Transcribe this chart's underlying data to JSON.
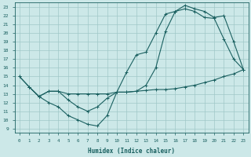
{
  "xlabel": "Humidex (Indice chaleur)",
  "xlim": [
    -0.5,
    23.5
  ],
  "ylim": [
    8.5,
    23.5
  ],
  "xticks": [
    0,
    1,
    2,
    3,
    4,
    5,
    6,
    7,
    8,
    9,
    10,
    11,
    12,
    13,
    14,
    15,
    16,
    17,
    18,
    19,
    20,
    21,
    22,
    23
  ],
  "yticks": [
    9,
    10,
    11,
    12,
    13,
    14,
    15,
    16,
    17,
    18,
    19,
    20,
    21,
    22,
    23
  ],
  "background_color": "#cce8e8",
  "grid_color": "#a0c8c8",
  "line_color": "#1a6060",
  "line1_x": [
    0,
    1,
    2,
    3,
    4,
    5,
    6,
    7,
    8,
    9,
    10,
    11,
    12,
    13,
    14,
    15,
    16,
    17,
    18,
    19,
    20,
    21,
    22,
    23
  ],
  "line1_y": [
    15.0,
    13.8,
    12.7,
    13.3,
    13.3,
    13.0,
    13.0,
    13.0,
    13.0,
    13.0,
    13.2,
    13.2,
    13.3,
    13.4,
    13.5,
    13.5,
    13.6,
    13.8,
    14.0,
    14.3,
    14.6,
    15.0,
    15.3,
    15.8
  ],
  "line2_x": [
    0,
    1,
    2,
    3,
    4,
    5,
    6,
    7,
    8,
    9,
    10,
    11,
    12,
    13,
    14,
    15,
    16,
    17,
    18,
    19,
    20,
    21,
    22,
    23
  ],
  "line2_y": [
    15.0,
    13.8,
    12.7,
    12.0,
    11.5,
    10.5,
    10.0,
    9.5,
    9.3,
    10.5,
    13.2,
    15.5,
    17.5,
    17.8,
    20.0,
    22.2,
    22.5,
    22.8,
    22.5,
    21.8,
    21.7,
    19.3,
    17.0,
    15.8
  ],
  "line3_x": [
    1,
    2,
    3,
    4,
    5,
    6,
    7,
    8,
    9,
    10,
    11,
    12,
    13,
    14,
    15,
    16,
    17,
    18,
    19,
    20,
    21,
    22,
    23
  ],
  "line3_y": [
    13.8,
    12.7,
    13.3,
    13.3,
    12.3,
    11.5,
    11.0,
    11.5,
    12.5,
    13.2,
    13.2,
    13.3,
    14.0,
    16.0,
    20.2,
    22.5,
    23.2,
    22.8,
    22.5,
    21.8,
    22.0,
    19.0,
    15.8
  ]
}
